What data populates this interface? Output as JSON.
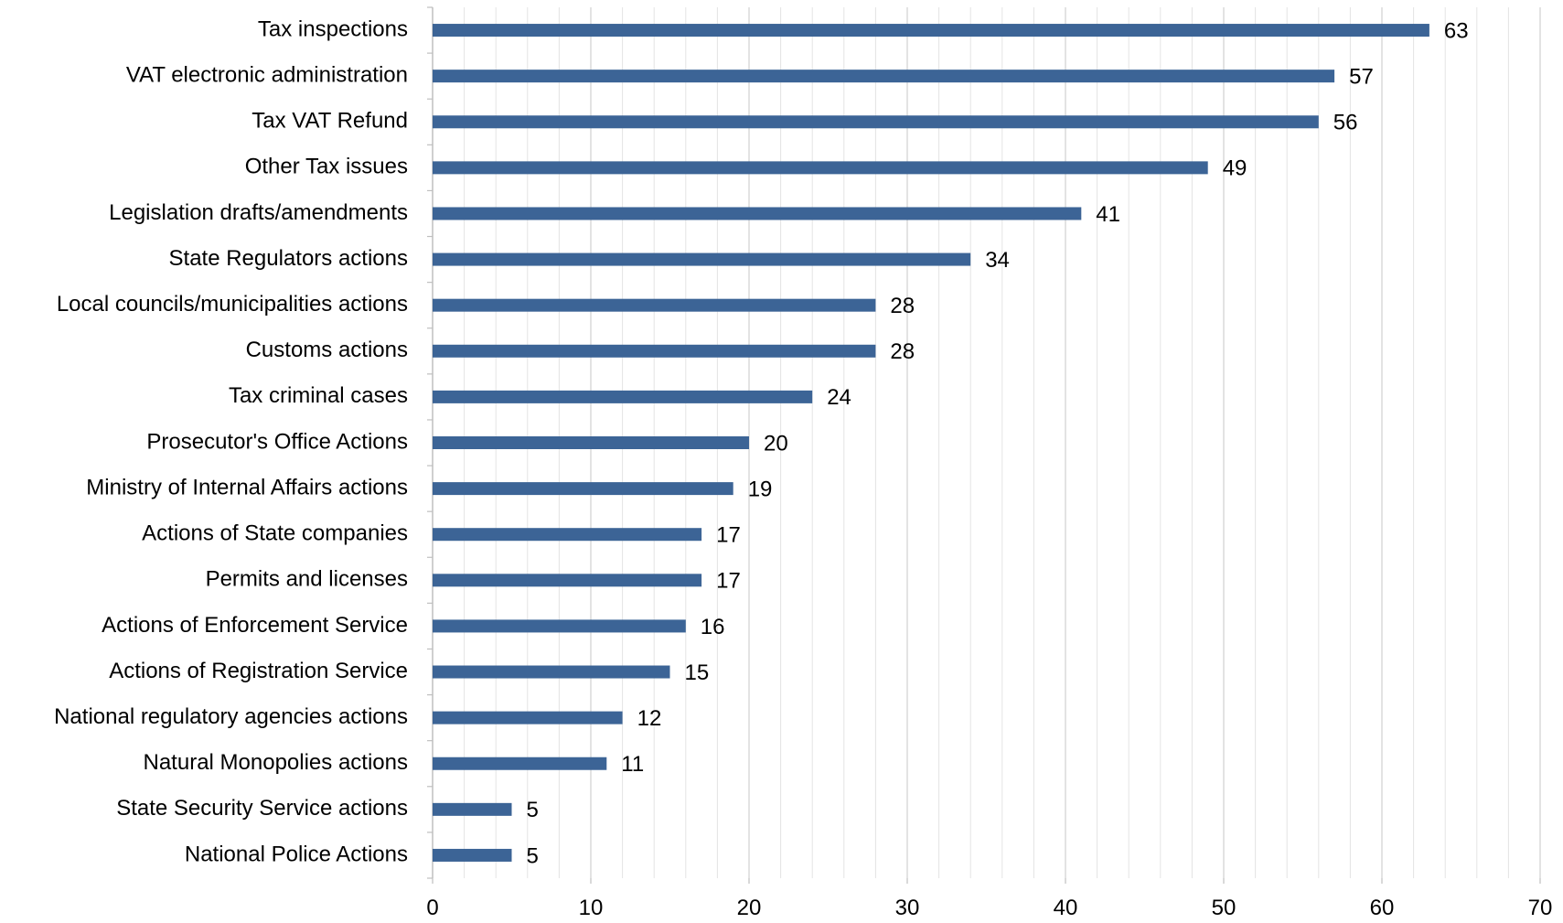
{
  "chart_data": {
    "type": "bar",
    "orientation": "horizontal",
    "title": "",
    "xlabel": "",
    "ylabel": "",
    "xlim": [
      0,
      70
    ],
    "x_ticks": [
      0,
      10,
      20,
      30,
      40,
      50,
      60,
      70
    ],
    "minor_tick_step": 2,
    "grid": true,
    "legend": "none",
    "bar_color": "#3c6496",
    "categories": [
      "Tax inspections",
      "VAT electronic administration",
      "Tax VAT Refund",
      "Other Tax issues",
      "Legislation drafts/amendments",
      "State Regulators actions",
      "Local councils/municipalities actions",
      "Customs actions",
      "Tax criminal cases",
      "Prosecutor's Office Actions",
      "Ministry of Internal Affairs actions",
      "Actions of State companies",
      "Permits and licenses",
      "Actions of Enforcement Service",
      "Actions of Registration Service",
      "National regulatory agencies actions",
      "Natural Monopolies actions",
      "State Security Service actions",
      "National Police Actions"
    ],
    "values": [
      63,
      57,
      56,
      49,
      41,
      34,
      28,
      28,
      24,
      20,
      19,
      17,
      17,
      16,
      15,
      12,
      11,
      5,
      5
    ]
  }
}
